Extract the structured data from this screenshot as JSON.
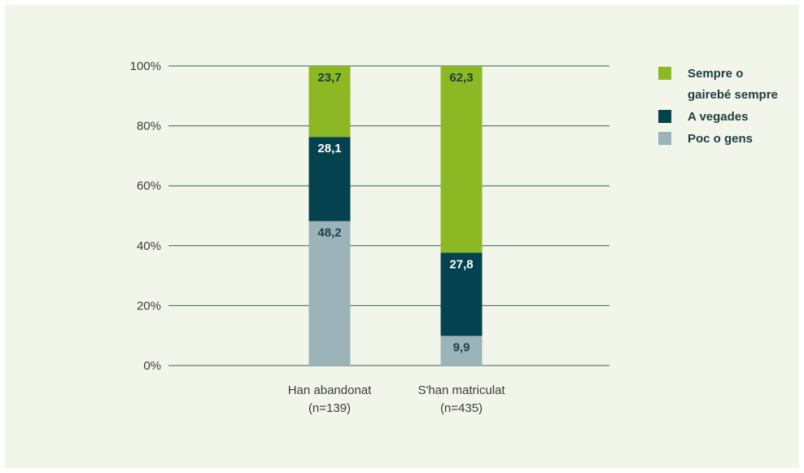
{
  "chart_data": {
    "type": "bar",
    "stacked": true,
    "title": "",
    "xlabel": "",
    "ylabel": "",
    "ylim": [
      0,
      100
    ],
    "y_tick_labels": [
      "0%",
      "20%",
      "40%",
      "60%",
      "80%",
      "100%"
    ],
    "categories": [
      [
        "Han abandonat",
        "(n=139)"
      ],
      [
        "S'han matriculat",
        "(n=435)"
      ]
    ],
    "series": [
      {
        "name": "Poc o gens",
        "values": [
          48.2,
          9.9
        ],
        "labels": [
          "48,2",
          "9,9"
        ],
        "color": "#9cb3ba",
        "label_color": "#17444a"
      },
      {
        "name": "A vegades",
        "values": [
          28.1,
          27.8
        ],
        "labels": [
          "28,1",
          "27,8"
        ],
        "color": "#05424f",
        "label_color": "#ffffff"
      },
      {
        "name": "Sempre o gairebé sempre",
        "values": [
          23.7,
          62.3
        ],
        "labels": [
          "23,7",
          "62,3"
        ],
        "color": "#8cb823",
        "label_color": "#1f3d3f"
      }
    ],
    "legend": {
      "position": "right",
      "items": [
        {
          "lines": [
            "Sempre o",
            "gairebé sempre"
          ],
          "color": "#8cb823"
        },
        {
          "lines": [
            "A vegades"
          ],
          "color": "#05424f"
        },
        {
          "lines": [
            "Poc o gens"
          ],
          "color": "#9cb3ba"
        }
      ]
    },
    "grid": true,
    "gridline_color": "#3b5f55",
    "background": "#f2f6ea"
  }
}
